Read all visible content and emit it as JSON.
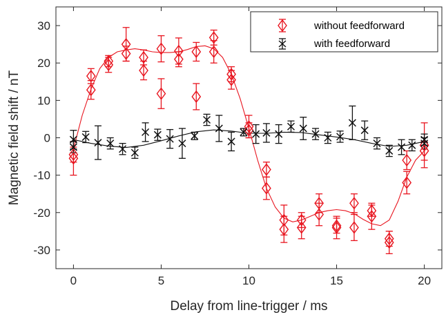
{
  "chart_data": {
    "type": "scatter",
    "title": "",
    "xlabel": "Delay from line-trigger / ms",
    "ylabel": "Magnetic field shift / nT",
    "xlim": [
      -1,
      21
    ],
    "ylim": [
      -35,
      35
    ],
    "xticks": [
      0,
      5,
      10,
      15,
      20
    ],
    "yticks": [
      -30,
      -20,
      -10,
      0,
      10,
      20,
      30
    ],
    "grid": false,
    "legend_position": "top-right",
    "colors": {
      "red": "#e8141e",
      "black": "#111111",
      "axis": "#262626"
    },
    "series": [
      {
        "name": "without feedforward",
        "marker": "diamond",
        "color": "#e8141e",
        "points": [
          {
            "x": 0,
            "y": -4.5,
            "err": 2.0
          },
          {
            "x": 0,
            "y": -5.5,
            "err": 4.5
          },
          {
            "x": 1,
            "y": 16.5,
            "err": 2.0
          },
          {
            "x": 1,
            "y": 12.8,
            "err": 2.5
          },
          {
            "x": 2,
            "y": 19.5,
            "err": 2.0
          },
          {
            "x": 2,
            "y": 20.5,
            "err": 1.5
          },
          {
            "x": 3,
            "y": 25.0,
            "err": 4.5
          },
          {
            "x": 3,
            "y": 22.5,
            "err": 2.0
          },
          {
            "x": 4,
            "y": 18.0,
            "err": 2.5
          },
          {
            "x": 4,
            "y": 21.5,
            "err": 2.0
          },
          {
            "x": 5,
            "y": 23.8,
            "err": 3.5
          },
          {
            "x": 5,
            "y": 11.8,
            "err": 4.0
          },
          {
            "x": 6,
            "y": 23.2,
            "err": 3.5
          },
          {
            "x": 6,
            "y": 21.0,
            "err": 2.0
          },
          {
            "x": 7,
            "y": 23.0,
            "err": 2.5
          },
          {
            "x": 7,
            "y": 11.0,
            "err": 3.5
          },
          {
            "x": 8,
            "y": 26.8,
            "err": 2.0
          },
          {
            "x": 8,
            "y": 23.0,
            "err": 3.0
          },
          {
            "x": 9,
            "y": 17.0,
            "err": 2.0
          },
          {
            "x": 9,
            "y": 15.5,
            "err": 2.5
          },
          {
            "x": 10,
            "y": 3.0,
            "err": 3.0
          },
          {
            "x": 10,
            "y": 2.0,
            "err": 2.0
          },
          {
            "x": 11,
            "y": -8.5,
            "err": 2.0
          },
          {
            "x": 11,
            "y": -13.5,
            "err": 3.0
          },
          {
            "x": 12,
            "y": -22.0,
            "err": 4.0
          },
          {
            "x": 12,
            "y": -24.5,
            "err": 3.5
          },
          {
            "x": 13,
            "y": -22.0,
            "err": 2.0
          },
          {
            "x": 13,
            "y": -24.0,
            "err": 3.0
          },
          {
            "x": 14,
            "y": -17.5,
            "err": 2.5
          },
          {
            "x": 14,
            "y": -20.5,
            "err": 3.0
          },
          {
            "x": 15,
            "y": -23.5,
            "err": 2.0
          },
          {
            "x": 15,
            "y": -24.0,
            "err": 3.0
          },
          {
            "x": 16,
            "y": -17.5,
            "err": 2.5
          },
          {
            "x": 16,
            "y": -24.0,
            "err": 3.5
          },
          {
            "x": 17,
            "y": -19.5,
            "err": 1.5
          },
          {
            "x": 17,
            "y": -21.0,
            "err": 3.5
          },
          {
            "x": 18,
            "y": -27.0,
            "err": 2.0
          },
          {
            "x": 18,
            "y": -28.0,
            "err": 3.0
          },
          {
            "x": 19,
            "y": -6.0,
            "err": 2.5
          },
          {
            "x": 19,
            "y": -12.0,
            "err": 3.0
          },
          {
            "x": 20,
            "y": -2.0,
            "err": 6.0
          },
          {
            "x": 20,
            "y": -3.5,
            "err": 2.5
          }
        ],
        "fit_curve": [
          [
            0,
            -3
          ],
          [
            0.5,
            6
          ],
          [
            1,
            13
          ],
          [
            1.5,
            18.5
          ],
          [
            2,
            21.5
          ],
          [
            2.5,
            23
          ],
          [
            3,
            23.5
          ],
          [
            3.5,
            23.8
          ],
          [
            4,
            23.5
          ],
          [
            4.5,
            23
          ],
          [
            5,
            22.8
          ],
          [
            5.5,
            22.8
          ],
          [
            6,
            23
          ],
          [
            6.5,
            23.6
          ],
          [
            7,
            24.4
          ],
          [
            7.5,
            24.6
          ],
          [
            8,
            23.8
          ],
          [
            8.5,
            21.5
          ],
          [
            9,
            17
          ],
          [
            9.5,
            10.5
          ],
          [
            10,
            2.5
          ],
          [
            10.5,
            -6
          ],
          [
            11,
            -13.5
          ],
          [
            11.5,
            -18.5
          ],
          [
            12,
            -21.5
          ],
          [
            12.5,
            -22.5
          ],
          [
            13,
            -22
          ],
          [
            13.5,
            -21
          ],
          [
            14,
            -20
          ],
          [
            14.5,
            -19.5
          ],
          [
            15,
            -19.2
          ],
          [
            15.5,
            -19.5
          ],
          [
            16,
            -20.3
          ],
          [
            16.5,
            -21.8
          ],
          [
            17,
            -23
          ],
          [
            17.5,
            -23.5
          ],
          [
            18,
            -22
          ],
          [
            18.5,
            -17
          ],
          [
            19,
            -10.5
          ],
          [
            19.5,
            -6
          ],
          [
            20,
            -3.5
          ]
        ]
      },
      {
        "name": "with feedforward",
        "marker": "x",
        "color": "#111111",
        "points": [
          {
            "x": 0,
            "y": -0.5,
            "err": 2.5
          },
          {
            "x": 0,
            "y": -2.5,
            "err": 1.5
          },
          {
            "x": 0.7,
            "y": 0.2,
            "err": 1.5
          },
          {
            "x": 1.4,
            "y": -1.3,
            "err": 4.5
          },
          {
            "x": 2.1,
            "y": -1.5,
            "err": 1.5
          },
          {
            "x": 2.8,
            "y": -3.0,
            "err": 1.5
          },
          {
            "x": 3.5,
            "y": -4.0,
            "err": 1.5
          },
          {
            "x": 4.1,
            "y": 1.5,
            "err": 2.5
          },
          {
            "x": 4.8,
            "y": 0.8,
            "err": 1.5
          },
          {
            "x": 5.5,
            "y": -0.3,
            "err": 2.5
          },
          {
            "x": 6.2,
            "y": -1.5,
            "err": 4.0
          },
          {
            "x": 6.9,
            "y": 0.5,
            "err": 1.0
          },
          {
            "x": 7.6,
            "y": 4.8,
            "err": 1.5
          },
          {
            "x": 8.3,
            "y": 2.5,
            "err": 3.5
          },
          {
            "x": 9.0,
            "y": -1.0,
            "err": 2.5
          },
          {
            "x": 9.7,
            "y": 1.5,
            "err": 1.0
          },
          {
            "x": 10.4,
            "y": 1.0,
            "err": 2.5
          },
          {
            "x": 11.0,
            "y": 1.3,
            "err": 2.5
          },
          {
            "x": 11.7,
            "y": 1.0,
            "err": 2.5
          },
          {
            "x": 12.4,
            "y": 3.0,
            "err": 1.5
          },
          {
            "x": 13.1,
            "y": 2.5,
            "err": 3.0
          },
          {
            "x": 13.8,
            "y": 1.0,
            "err": 1.5
          },
          {
            "x": 14.5,
            "y": 0.0,
            "err": 1.5
          },
          {
            "x": 15.2,
            "y": 0.3,
            "err": 1.5
          },
          {
            "x": 15.9,
            "y": 4.0,
            "err": 4.5
          },
          {
            "x": 16.6,
            "y": 2.0,
            "err": 2.5
          },
          {
            "x": 17.3,
            "y": -1.5,
            "err": 1.5
          },
          {
            "x": 18.0,
            "y": -3.5,
            "err": 1.5
          },
          {
            "x": 18.7,
            "y": -2.5,
            "err": 2.0
          },
          {
            "x": 19.3,
            "y": -2.0,
            "err": 1.5
          },
          {
            "x": 20.0,
            "y": -0.5,
            "err": 1.5
          },
          {
            "x": 20.0,
            "y": -1.5,
            "err": 1.5
          }
        ],
        "fit_curve": [
          [
            0,
            -0.5
          ],
          [
            1,
            -1.5
          ],
          [
            2,
            -2.2
          ],
          [
            3,
            -2.6
          ],
          [
            4,
            -2
          ],
          [
            5,
            -0.8
          ],
          [
            6,
            0.5
          ],
          [
            7,
            1.6
          ],
          [
            8,
            2.1
          ],
          [
            9,
            1.8
          ],
          [
            10,
            1.2
          ],
          [
            11,
            1.2
          ],
          [
            12,
            1.5
          ],
          [
            13,
            1.4
          ],
          [
            14,
            0.8
          ],
          [
            15,
            0.2
          ],
          [
            16,
            -0.5
          ],
          [
            17,
            -1.5
          ],
          [
            18,
            -2.3
          ],
          [
            19,
            -2
          ],
          [
            20,
            -1
          ]
        ]
      }
    ]
  }
}
